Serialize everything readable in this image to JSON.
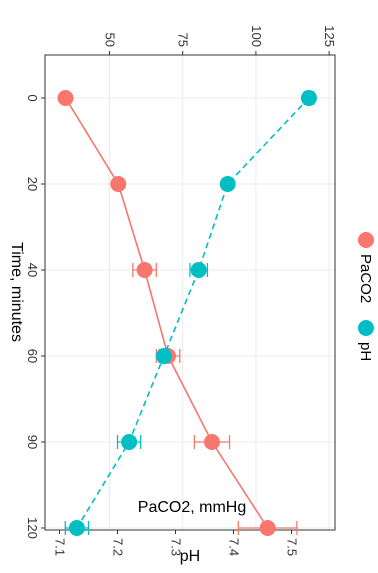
{
  "chart_data": {
    "type": "line",
    "orientation": "rotated-90-clockwise",
    "xlabel": "Time, minutes",
    "x_ticks": [
      "0",
      "20",
      "40",
      "60",
      "90",
      "120"
    ],
    "y_primary_label": "PaCO2, mmHg",
    "y_primary_ticks": [
      50,
      75,
      100,
      125
    ],
    "y_primary_lim": [
      28,
      127
    ],
    "y_secondary_label": "pH",
    "y_secondary_ticks": [
      7.1,
      7.2,
      7.3,
      7.4,
      7.5
    ],
    "y_secondary_lim": [
      7.075,
      7.575
    ],
    "grid": true,
    "legend_position": "right",
    "series": [
      {
        "name": "PaCO2",
        "axis": "primary",
        "color": "#F8766D",
        "line_style": "solid",
        "values": [
          35,
          53,
          62,
          70,
          85,
          104
        ],
        "error": [
          0.8,
          1.0,
          4,
          4,
          6,
          10
        ]
      },
      {
        "name": "pH",
        "axis": "secondary",
        "color": "#00BFC4",
        "line_style": "dashed",
        "values": [
          7.53,
          7.39,
          7.34,
          7.28,
          7.22,
          7.13
        ],
        "error": [
          0.008,
          0.005,
          0.015,
          0.008,
          0.02,
          0.02
        ]
      }
    ]
  }
}
